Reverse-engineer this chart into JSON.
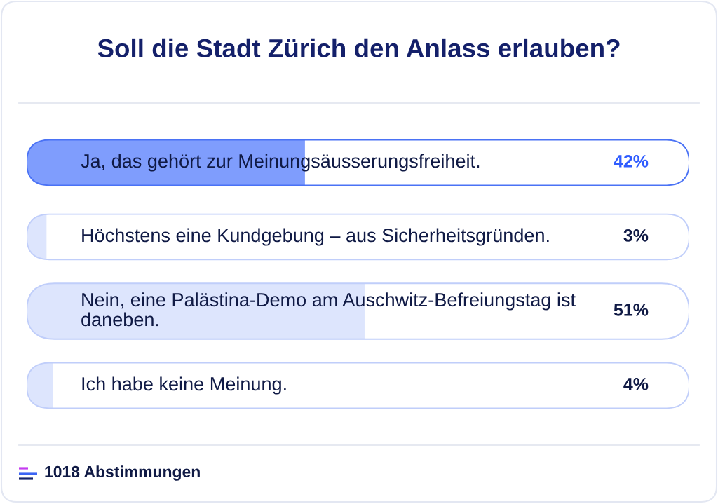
{
  "chart_data": {
    "type": "bar",
    "orientation": "horizontal",
    "title": "Soll die Stadt Zürich den Anlass erlauben?",
    "categories": [
      "Ja, das gehört zur Meinungsäusserungsfreiheit.",
      "Höchstens eine Kundgebung – aus Sicherheitsgründen.",
      "Nein, eine Palästina-Demo am Auschwitz-Befreiungstag ist daneben.",
      "Ich habe keine Meinung."
    ],
    "series": [
      {
        "values": [
          100,
          100,
          100,
          100
        ],
        "colors": [
          "#4a72f5",
          "#c0cefa",
          "#c0cefa",
          "#c0cefa"
        ]
      },
      {
        "values": [
          42,
          3,
          51,
          4
        ],
        "colors": [
          "#7f9dfd",
          "#dde5fd",
          "#dde5fd",
          "#dde5fd"
        ],
        "value_labels": [
          "42%",
          "3%",
          "51%",
          "4%"
        ]
      }
    ],
    "xlim": [
      0,
      100
    ],
    "annotations": [
      "1018 Abstimmungen"
    ]
  }
}
